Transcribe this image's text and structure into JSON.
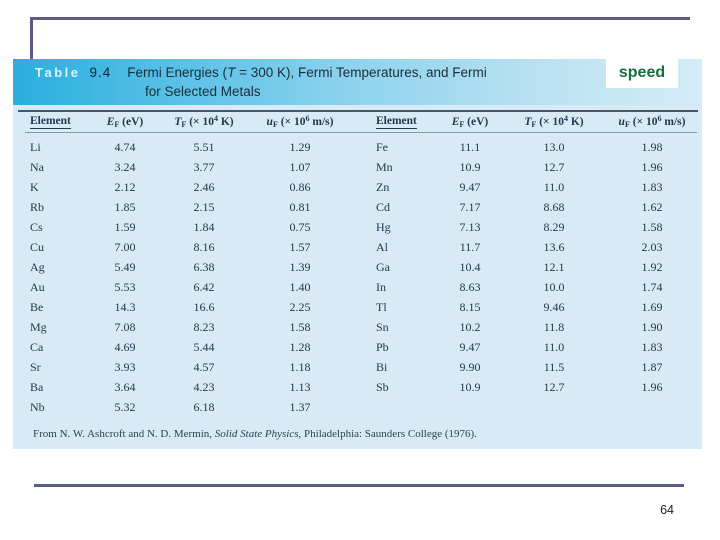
{
  "slide": {
    "page_number": "64"
  },
  "table": {
    "label_word": "Table",
    "number": "9.4",
    "title_pre": "Fermi Energies (",
    "title_T": "T",
    "title_post": " = 300 K), Fermi Temperatures, and Fermi",
    "title_line2": "for Selected Metals",
    "overlay_label": "speed",
    "columns": {
      "element": "Element",
      "ef": {
        "sym": "E",
        "sub": "F",
        "unit": " (eV)"
      },
      "tf": {
        "sym": "T",
        "sub": "F",
        "unit_pre": " (× 10",
        "sup": "4",
        "unit_post": " K)"
      },
      "uf": {
        "sym": "u",
        "sub": "F",
        "unit_pre": " (× 10",
        "sup": "6",
        "unit_post": " m/s)"
      }
    },
    "rows": [
      [
        "Li",
        "4.74",
        "5.51",
        "1.29",
        "Fe",
        "11.1",
        "13.0",
        "1.98"
      ],
      [
        "Na",
        "3.24",
        "3.77",
        "1.07",
        "Mn",
        "10.9",
        "12.7",
        "1.96"
      ],
      [
        "K",
        "2.12",
        "2.46",
        "0.86",
        "Zn",
        "9.47",
        "11.0",
        "1.83"
      ],
      [
        "Rb",
        "1.85",
        "2.15",
        "0.81",
        "Cd",
        "7.17",
        "8.68",
        "1.62"
      ],
      [
        "Cs",
        "1.59",
        "1.84",
        "0.75",
        "Hg",
        "7.13",
        "8.29",
        "1.58"
      ],
      [
        "Cu",
        "7.00",
        "8.16",
        "1.57",
        "Al",
        "11.7",
        "13.6",
        "2.03"
      ],
      [
        "Ag",
        "5.49",
        "6.38",
        "1.39",
        "Ga",
        "10.4",
        "12.1",
        "1.92"
      ],
      [
        "Au",
        "5.53",
        "6.42",
        "1.40",
        "In",
        "8.63",
        "10.0",
        "1.74"
      ],
      [
        "Be",
        "14.3",
        "16.6",
        "2.25",
        "Tl",
        "8.15",
        "9.46",
        "1.69"
      ],
      [
        "Mg",
        "7.08",
        "8.23",
        "1.58",
        "Sn",
        "10.2",
        "11.8",
        "1.90"
      ],
      [
        "Ca",
        "4.69",
        "5.44",
        "1.28",
        "Pb",
        "9.47",
        "11.0",
        "1.83"
      ],
      [
        "Sr",
        "3.93",
        "4.57",
        "1.18",
        "Bi",
        "9.90",
        "11.5",
        "1.87"
      ],
      [
        "Ba",
        "3.64",
        "4.23",
        "1.13",
        "Sb",
        "10.9",
        "12.7",
        "1.96"
      ],
      [
        "Nb",
        "5.32",
        "6.18",
        "1.37",
        "",
        "",
        "",
        ""
      ]
    ],
    "source_pre": "From N. W. Ashcroft and N. D. Mermin, ",
    "source_italic": "Solid State Physics",
    "source_post": ", Philadelphia: Saunders College (1976)."
  },
  "colors": {
    "frame_line": "#5b5b83",
    "table_bg": "#d7eaf5",
    "band_left": "#29aede",
    "band_right": "#d3ecf7",
    "speed_green": "#186f3e",
    "text_navy": "#223a50"
  }
}
